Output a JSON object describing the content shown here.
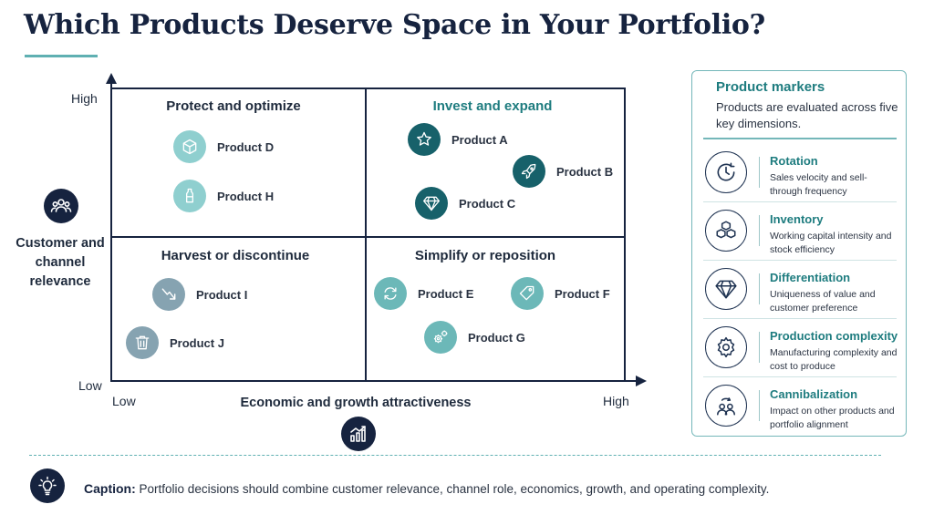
{
  "title": "Which Products Deserve Space in Your Portfolio?",
  "matrix": {
    "y_axis": {
      "title": "Customer and channel relevance",
      "high": "High",
      "low": "Low"
    },
    "x_axis": {
      "title": "Economic and growth attractiveness",
      "low": "Low",
      "high": "High"
    },
    "y_axis_icon": "people-icon",
    "x_axis_icon": "bar-chart-growth-icon",
    "quadrants": {
      "top_left": {
        "title": "Protect and optimize"
      },
      "top_right": {
        "title": "Invest and expand"
      },
      "bottom_left": {
        "title": "Harvest or discontinue"
      },
      "bottom_right": {
        "title": "Simplify or reposition"
      }
    },
    "products": [
      {
        "label": "Product D",
        "icon": "cube-icon",
        "color": "#8fcfcf"
      },
      {
        "label": "Product H",
        "icon": "bottle-icon",
        "color": "#8fcfcf"
      },
      {
        "label": "Product A",
        "icon": "star-icon",
        "color": "#17616a"
      },
      {
        "label": "Product B",
        "icon": "rocket-icon",
        "color": "#17616a"
      },
      {
        "label": "Product C",
        "icon": "diamond-icon",
        "color": "#17616a"
      },
      {
        "label": "Product I",
        "icon": "trend-down-icon",
        "color": "#86a3b1"
      },
      {
        "label": "Product J",
        "icon": "trash-icon",
        "color": "#86a3b1"
      },
      {
        "label": "Product E",
        "icon": "cycle-arrows-icon",
        "color": "#6cb8b8"
      },
      {
        "label": "Product F",
        "icon": "tag-icon",
        "color": "#6cb8b8"
      },
      {
        "label": "Product G",
        "icon": "gears-icon",
        "color": "#6cb8b8"
      }
    ]
  },
  "markers_panel": {
    "title": "Product markers",
    "subtitle": "Products are evaluated across five key dimensions.",
    "items": [
      {
        "name": "Rotation",
        "description": "Sales velocity and sell-through frequency",
        "icon": "clock-icon"
      },
      {
        "name": "Inventory",
        "description": "Working capital intensity and stock efficiency",
        "icon": "boxes-icon"
      },
      {
        "name": "Differentiation",
        "description": "Uniqueness of value and customer preference",
        "icon": "diamond-icon"
      },
      {
        "name": "Production complexity",
        "description": "Manufacturing complexity and cost to produce",
        "icon": "gear-icon"
      },
      {
        "name": "Cannibalization",
        "description": "Impact on other products and portfolio alignment",
        "icon": "users-swap-icon"
      }
    ]
  },
  "caption": {
    "label": "Caption:",
    "text": "Portfolio decisions should combine customer relevance, channel role, economics, growth, and operating complexity.",
    "icon": "lightbulb-icon"
  },
  "colors": {
    "navy": "#16233f",
    "teal": "#1e7c7f",
    "accent": "#5fb0b2"
  }
}
